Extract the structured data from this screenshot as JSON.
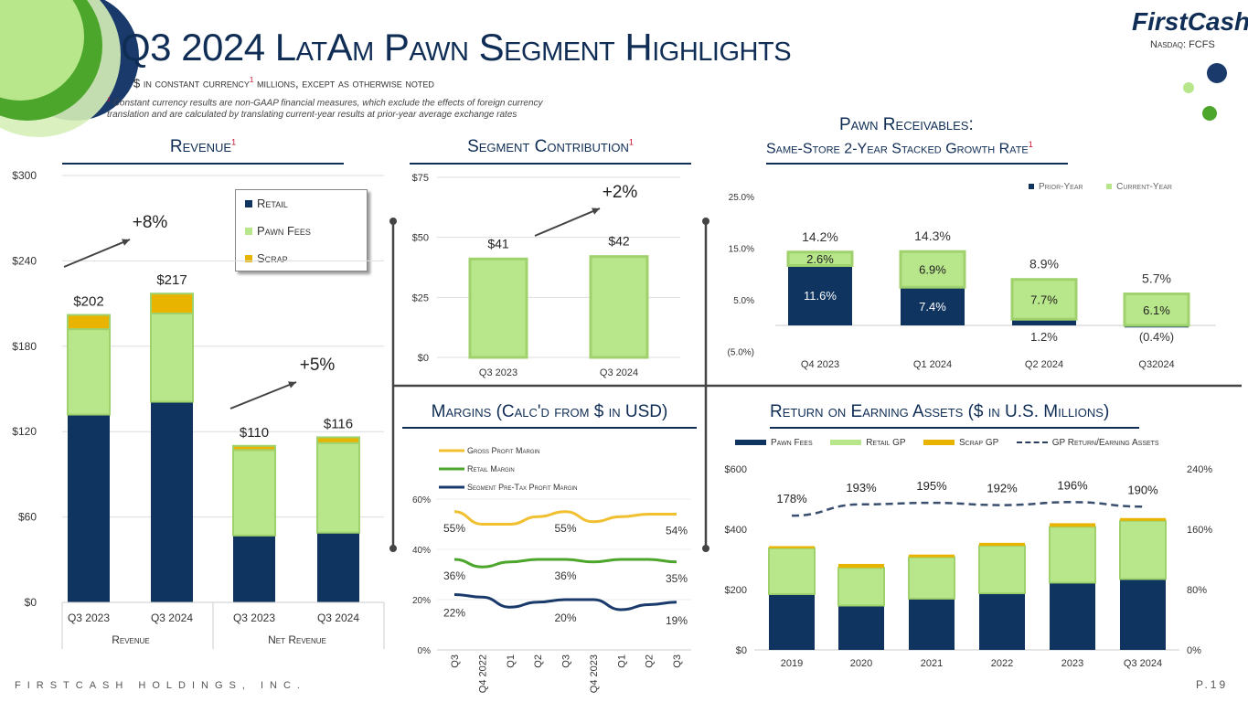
{
  "header": {
    "title": "Q3 2024 LatAm Pawn Segment Highlights",
    "subtitle": "$ in constant currency",
    "subtitle_sup": "1",
    "subtitle_rest": " millions, except as otherwise noted",
    "footnote_mark": "1",
    "footnote": "Constant currency results are non-GAAP financial measures, which exclude the effects of foreign currency translation and are calculated by translating current-year results at prior-year average exchange rates",
    "logo_first": "First",
    "logo_cash": "Cash",
    "ticker": "Nasdaq: FCFS"
  },
  "footer": {
    "company": "FIRSTCASH HOLDINGS, INC.",
    "page": "P.19"
  },
  "colors": {
    "navy": "#0f3460",
    "green": "#b8e68a",
    "gold": "#e8b400",
    "darkgreen": "#4ca62b",
    "grid": "#dddddd"
  },
  "chart_data": [
    {
      "id": "revenue",
      "type": "bar",
      "title": "Revenue",
      "title_sup": "1",
      "groups": [
        "Revenue",
        "Net Revenue"
      ],
      "categories": [
        "Q3 2023",
        "Q3 2024",
        "Q3 2023",
        "Q3 2024"
      ],
      "series": [
        {
          "name": "Retail",
          "values": [
            132,
            141,
            47,
            49
          ]
        },
        {
          "name": "Pawn Fees",
          "values": [
            60,
            62,
            60,
            63
          ]
        },
        {
          "name": "Scrap",
          "values": [
            10,
            14,
            3,
            4
          ]
        }
      ],
      "totals": [
        "$202",
        "$217",
        "$110",
        "$116"
      ],
      "ylim": [
        0,
        300
      ],
      "yticks": [
        "$0",
        "$60",
        "$120",
        "$180",
        "$240",
        "$300"
      ],
      "annotations": [
        "+8%",
        "+5%"
      ],
      "legend": [
        "Retail",
        "Pawn Fees",
        "Scrap"
      ]
    },
    {
      "id": "segment-contribution",
      "type": "bar",
      "title": "Segment Contribution",
      "title_sup": "1",
      "categories": [
        "Q3 2023",
        "Q3 2024"
      ],
      "values": [
        41,
        42
      ],
      "labels": [
        "$41",
        "$42"
      ],
      "ylim": [
        0,
        75
      ],
      "yticks": [
        "$0",
        "$25",
        "$50",
        "$75"
      ],
      "annotation": "+2%"
    },
    {
      "id": "pawn-receivables",
      "type": "bar",
      "title": "Pawn Receivables:",
      "title2": "Same-Store 2-Year Stacked Growth Rate",
      "title_sup": "1",
      "categories": [
        "Q4 2023",
        "Q1 2024",
        "Q2 2024",
        "Q32024"
      ],
      "series": [
        {
          "name": "Prior-Year",
          "values": [
            11.6,
            7.4,
            1.2,
            -0.4
          ],
          "labels": [
            "11.6%",
            "7.4%",
            "1.2%",
            "(0.4%)"
          ]
        },
        {
          "name": "Current-Year",
          "values": [
            2.6,
            6.9,
            7.7,
            6.1
          ],
          "labels": [
            "2.6%",
            "6.9%",
            "7.7%",
            "6.1%"
          ]
        }
      ],
      "totals": [
        "14.2%",
        "14.3%",
        "8.9%",
        "5.7%"
      ],
      "ylim": [
        -5,
        25
      ],
      "yticks": [
        "(5.0%)",
        "5.0%",
        "15.0%",
        "25.0%"
      ],
      "legend": [
        "Prior-Year",
        "Current-Year"
      ]
    },
    {
      "id": "margins",
      "type": "line",
      "title": "Margins (Calc'd from $ in USD)",
      "x": [
        "Q3",
        "Q4 2022",
        "Q1",
        "Q2",
        "Q3",
        "Q4 2023",
        "Q1",
        "Q2",
        "Q3"
      ],
      "series": [
        {
          "name": "Gross Profit Margin",
          "values": [
            55,
            50,
            50,
            53,
            55,
            51,
            53,
            54,
            54
          ],
          "labels": [
            "55%",
            "55%",
            "54%"
          ]
        },
        {
          "name": "Retail Margin",
          "values": [
            36,
            33,
            35,
            36,
            36,
            35,
            36,
            36,
            35
          ],
          "labels": [
            "36%",
            "36%",
            "35%"
          ]
        },
        {
          "name": "Segment Pre-Tax Profit Margin",
          "values": [
            22,
            21,
            17,
            19,
            20,
            20,
            16,
            18,
            19
          ],
          "labels": [
            "22%",
            "20%",
            "19%"
          ]
        }
      ],
      "ylim": [
        0,
        60
      ],
      "yticks": [
        "0%",
        "20%",
        "40%",
        "60%"
      ]
    },
    {
      "id": "return-on-earning-assets",
      "type": "bar",
      "title": "Return on Earning Assets ($ in U.S. Millions)",
      "categories": [
        "2019",
        "2020",
        "2021",
        "2022",
        "2023",
        "Q3 2024"
      ],
      "series": [
        {
          "name": "Pawn Fees",
          "values": [
            185,
            147,
            170,
            188,
            223,
            235
          ]
        },
        {
          "name": "Retail GP",
          "values": [
            152,
            125,
            137,
            157,
            185,
            193
          ]
        },
        {
          "name": "Scrap GP",
          "values": [
            7,
            13,
            9,
            10,
            12,
            9
          ]
        },
        {
          "name": "GP Return/Earning Assets",
          "values": [
            178,
            193,
            195,
            192,
            196,
            190
          ],
          "labels": [
            "178%",
            "193%",
            "195%",
            "192%",
            "196%",
            "190%"
          ],
          "axis": "right"
        }
      ],
      "ylim": [
        0,
        600
      ],
      "yticks": [
        "$0",
        "$200",
        "$400",
        "$600"
      ],
      "y2lim": [
        0,
        240
      ],
      "y2ticks": [
        "0%",
        "80%",
        "160%",
        "240%"
      ],
      "legend": [
        "Pawn Fees",
        "Retail GP",
        "Scrap GP",
        "GP Return/Earning Assets"
      ]
    }
  ]
}
